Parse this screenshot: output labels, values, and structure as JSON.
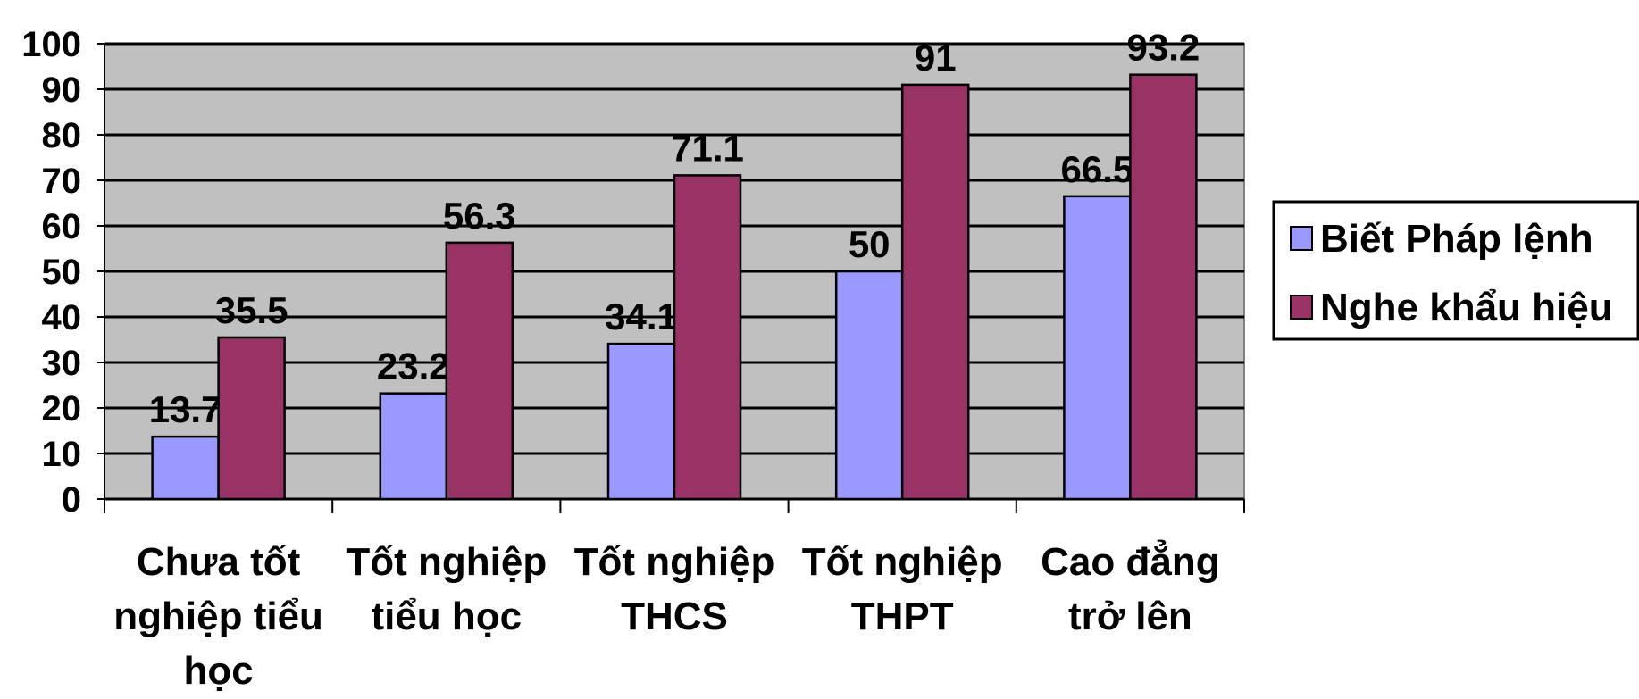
{
  "chart_data": {
    "type": "bar",
    "categories": [
      "Chưa tốt nghiệp tiểu học",
      "Tốt nghiệp tiểu học",
      "Tốt nghiệp THCS",
      "Tốt nghiệp THPT",
      "Cao đẳng trở lên"
    ],
    "series": [
      {
        "name": "Biết Pháp lệnh",
        "color": "#9999ff",
        "values": [
          13.7,
          23.2,
          34.1,
          50,
          66.5
        ]
      },
      {
        "name": "Nghe khẩu hiệu",
        "color": "#993366",
        "values": [
          35.5,
          56.3,
          71.1,
          91,
          93.2
        ]
      }
    ],
    "ylim": [
      0,
      100
    ],
    "yticks": [
      0,
      10,
      20,
      30,
      40,
      50,
      60,
      70,
      80,
      90,
      100
    ],
    "grid": true,
    "legend": "right",
    "plot_background": "#c0c0c0"
  }
}
